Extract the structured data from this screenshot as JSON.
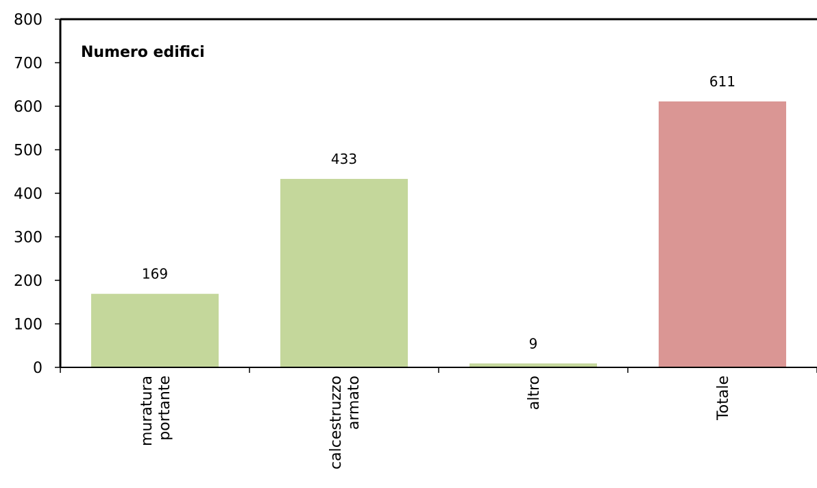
{
  "chart_data": {
    "type": "bar",
    "title": "Numero edifici",
    "categories": [
      [
        "muratura",
        "portante"
      ],
      [
        "calcestruzzo",
        "armato"
      ],
      [
        "altro"
      ],
      [
        "Totale"
      ]
    ],
    "values": [
      169,
      433,
      9,
      611
    ],
    "data_labels": [
      "169",
      "433",
      "9",
      "611"
    ],
    "bar_colors": [
      "#c4d79b",
      "#c4d79b",
      "#c4d79b",
      "#da9694"
    ],
    "y_ticks": [
      0,
      100,
      200,
      300,
      400,
      500,
      600,
      700,
      800
    ],
    "ylim": [
      0,
      800
    ],
    "xlabel": "",
    "ylabel": "",
    "grid": false,
    "legend": "none"
  }
}
